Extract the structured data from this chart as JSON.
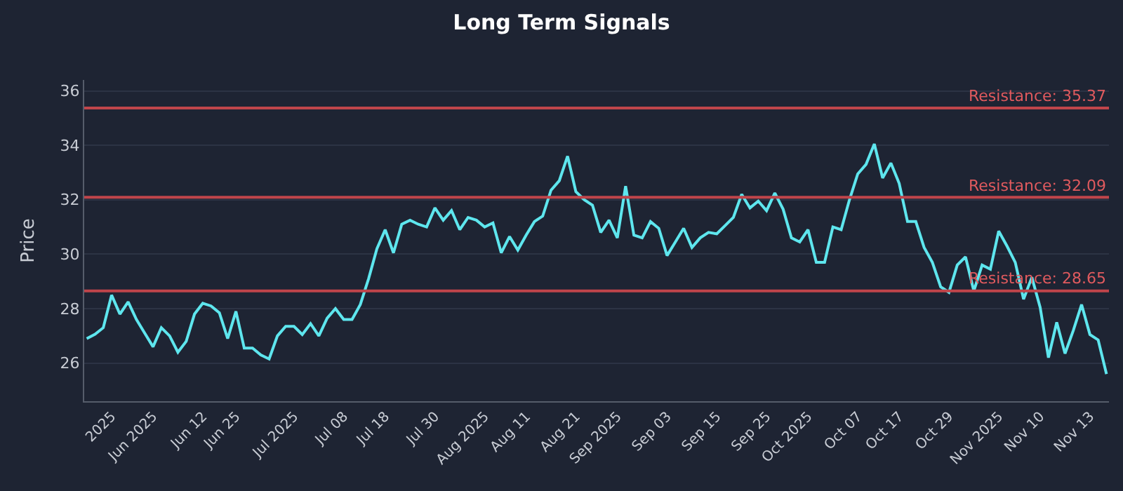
{
  "chart_data": {
    "type": "line",
    "title": "Long Term Signals",
    "ylabel": "Price",
    "categories": [
      null,
      null,
      null,
      "2025",
      null,
      null,
      null,
      null,
      "Jun 2025",
      null,
      null,
      null,
      null,
      null,
      "Jun 12",
      null,
      null,
      null,
      "Jun 25",
      null,
      null,
      null,
      null,
      null,
      null,
      "Jul 2025",
      null,
      null,
      null,
      null,
      null,
      "Jul 08",
      null,
      null,
      null,
      null,
      "Jul 18",
      null,
      null,
      null,
      null,
      null,
      "Jul 30",
      null,
      null,
      null,
      null,
      null,
      "Aug 2025",
      null,
      null,
      null,
      null,
      "Aug 11",
      null,
      null,
      null,
      null,
      null,
      "Aug 21",
      null,
      null,
      null,
      null,
      "Sep 2025",
      null,
      null,
      null,
      null,
      null,
      "Sep 03",
      null,
      null,
      null,
      null,
      null,
      "Sep 15",
      null,
      null,
      null,
      null,
      null,
      "Sep 25",
      null,
      null,
      null,
      null,
      "Oct 2025",
      null,
      null,
      null,
      null,
      null,
      "Oct 07",
      null,
      null,
      null,
      null,
      "Oct 17",
      null,
      null,
      null,
      null,
      null,
      "Oct 29",
      null,
      null,
      null,
      null,
      null,
      "Nov 2025",
      null,
      null,
      null,
      null,
      "Nov 10",
      null,
      null,
      null,
      null,
      null,
      "Nov 13",
      null,
      null
    ],
    "series": [
      {
        "color": "#5ee6ee",
        "values": [
          26.9,
          27.06,
          27.3,
          28.5,
          27.8,
          28.25,
          27.6,
          27.1,
          26.6,
          27.3,
          27.0,
          26.4,
          26.8,
          27.8,
          28.2,
          28.1,
          27.85,
          26.9,
          27.9,
          26.55,
          26.55,
          26.3,
          26.15,
          27.0,
          27.35,
          27.35,
          27.05,
          27.45,
          27.0,
          27.65,
          28.0,
          27.6,
          27.6,
          28.15,
          29.1,
          30.2,
          30.9,
          30.05,
          31.1,
          31.25,
          31.1,
          31.0,
          31.7,
          31.25,
          31.6,
          30.9,
          31.35,
          31.25,
          31.0,
          31.15,
          30.05,
          30.65,
          30.15,
          30.7,
          31.2,
          31.4,
          32.35,
          32.7,
          33.6,
          32.3,
          32.0,
          31.8,
          30.8,
          31.25,
          30.6,
          32.5,
          30.7,
          30.6,
          31.2,
          30.95,
          29.95,
          30.45,
          30.95,
          30.25,
          30.6,
          30.8,
          30.75,
          31.05,
          31.35,
          32.2,
          31.7,
          31.95,
          31.6,
          32.25,
          31.65,
          30.6,
          30.45,
          30.9,
          29.7,
          29.7,
          31.0,
          30.9,
          32.0,
          32.95,
          33.3,
          34.05,
          32.8,
          33.35,
          32.6,
          31.2,
          31.2,
          30.25,
          29.7,
          28.8,
          28.6,
          29.6,
          29.9,
          28.65,
          29.6,
          29.45,
          30.85,
          30.3,
          29.7,
          28.35,
          29.15,
          28.05,
          26.2,
          27.5,
          26.35,
          27.2,
          28.15,
          27.05,
          26.85,
          25.6
        ]
      }
    ],
    "ylim": [
      24.6,
      36.4
    ],
    "yticks": [
      26,
      28,
      30,
      32,
      34,
      36
    ],
    "grid": "y",
    "ref_lines": [
      {
        "axis": "y",
        "value": 35.37,
        "label": "Resistance: 35.37",
        "color": "#c0454b"
      },
      {
        "axis": "y",
        "value": 32.09,
        "label": "Resistance: 32.09",
        "color": "#c0454b"
      },
      {
        "axis": "y",
        "value": 28.65,
        "label": "Resistance: 28.65",
        "color": "#c0454b"
      }
    ]
  }
}
